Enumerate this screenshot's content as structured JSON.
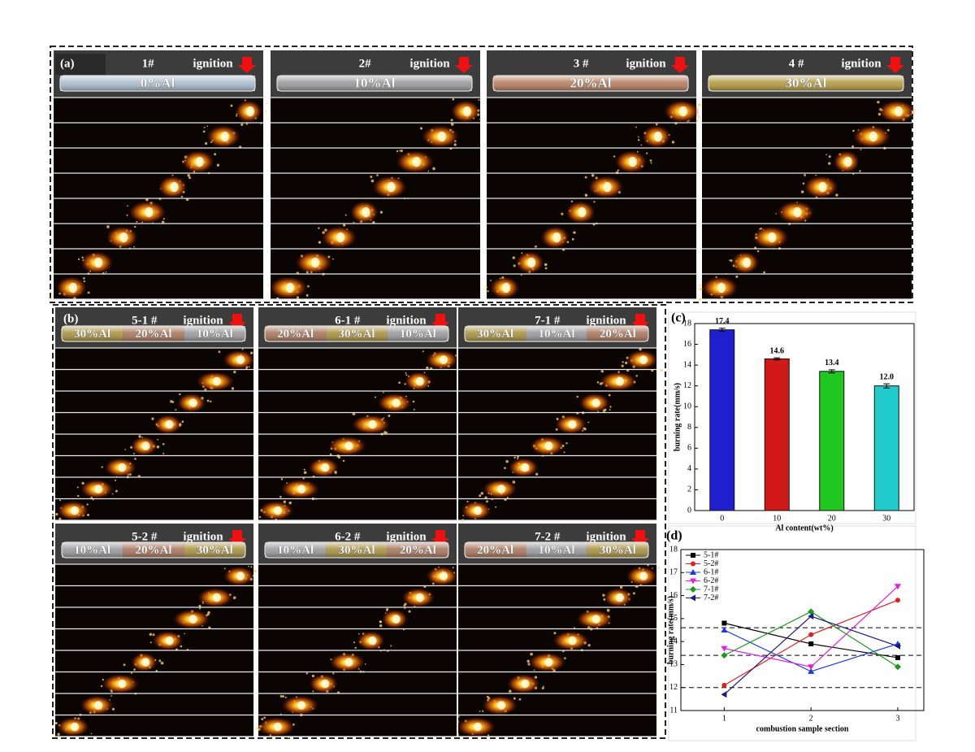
{
  "panel_a": {
    "label": "(a)",
    "samples": [
      {
        "name": "1#",
        "ignition": "ignition",
        "segments": [
          "0%Al"
        ],
        "colors": [
          "#a8bccb"
        ]
      },
      {
        "name": "2#",
        "ignition": "ignition",
        "segments": [
          "10%Al"
        ],
        "colors": [
          "#9a9a9c"
        ]
      },
      {
        "name": "3 #",
        "ignition": "ignition",
        "segments": [
          "20%Al"
        ],
        "colors": [
          "#b57d5e"
        ]
      },
      {
        "name": "4 #",
        "ignition": "ignition",
        "segments": [
          "30%Al"
        ],
        "colors": [
          "#b19a3f"
        ]
      }
    ]
  },
  "panel_b": {
    "label": "(b)",
    "samples": [
      {
        "name": "5-1 #",
        "ignition": "ignition",
        "segments": [
          "30%Al",
          "20%Al",
          "10%Al"
        ],
        "colors": [
          "#a8923f",
          "#a9775c",
          "#9a9a9c"
        ]
      },
      {
        "name": "6-1 #",
        "ignition": "ignition",
        "segments": [
          "20%Al",
          "30%Al",
          "10%Al"
        ],
        "colors": [
          "#a9775c",
          "#a8923f",
          "#9a9a9c"
        ]
      },
      {
        "name": "7-1 #",
        "ignition": "ignition",
        "segments": [
          "30%Al",
          "10%Al",
          "20%Al"
        ],
        "colors": [
          "#a8923f",
          "#9a9a9c",
          "#a9775c"
        ]
      },
      {
        "name": "5-2 #",
        "ignition": "ignition",
        "segments": [
          "10%Al",
          "20%Al",
          "30%Al"
        ],
        "colors": [
          "#9a9a9c",
          "#a9775c",
          "#a8923f"
        ]
      },
      {
        "name": "6-2 #",
        "ignition": "ignition",
        "segments": [
          "10%Al",
          "30%Al",
          "20%Al"
        ],
        "colors": [
          "#9a9a9c",
          "#a8923f",
          "#a9775c"
        ]
      },
      {
        "name": "7-2 #",
        "ignition": "ignition",
        "segments": [
          "20%Al",
          "10%Al",
          "30%Al"
        ],
        "colors": [
          "#a9775c",
          "#9a9a9c",
          "#a8923f"
        ]
      }
    ]
  },
  "chart_data": [
    {
      "type": "bar",
      "label": "(c)",
      "x_label": "Al content(wt%)",
      "y_label": "burning rate(mm/s)",
      "categories": [
        "0",
        "10",
        "20",
        "30"
      ],
      "values": [
        17.4,
        14.6,
        13.4,
        12.0
      ],
      "value_labels": [
        "17.4",
        "14.6",
        "13.4",
        "12.0"
      ],
      "errors": [
        0.15,
        0.1,
        0.15,
        0.2
      ],
      "colors": [
        "#1f1fd0",
        "#d01a1a",
        "#1fc81f",
        "#22cccc"
      ],
      "ylim": [
        0,
        18
      ],
      "yticks": [
        0,
        2,
        4,
        6,
        8,
        10,
        12,
        14,
        16,
        18
      ]
    },
    {
      "type": "line",
      "label": "(d)",
      "x_label": "combustion sample section",
      "y_label": "burning rate(mm/s)",
      "x": [
        1,
        2,
        3
      ],
      "xlim": [
        0.5,
        3.3
      ],
      "xticks": [
        1,
        2,
        3
      ],
      "ylim": [
        11,
        18
      ],
      "yticks": [
        11,
        12,
        13,
        14,
        15,
        16,
        17,
        18
      ],
      "reference_lines": [
        14.6,
        13.4,
        12.0
      ],
      "legend": "upper left",
      "series": [
        {
          "name": "5-1#",
          "color": "#000000",
          "marker": "square",
          "values": [
            14.8,
            13.9,
            13.3
          ]
        },
        {
          "name": "5-2#",
          "color": "#e02020",
          "marker": "circle",
          "values": [
            12.1,
            14.3,
            15.8
          ]
        },
        {
          "name": "6-1#",
          "color": "#1a3ae0",
          "marker": "triangle-up",
          "values": [
            14.5,
            12.7,
            13.9
          ]
        },
        {
          "name": "6-2#",
          "color": "#e020e0",
          "marker": "triangle-down",
          "values": [
            13.7,
            12.9,
            16.4
          ]
        },
        {
          "name": "7-1#",
          "color": "#1a9a1a",
          "marker": "diamond",
          "values": [
            13.4,
            15.3,
            12.9
          ]
        },
        {
          "name": "7-2#",
          "color": "#1a1a80",
          "marker": "triangle-left",
          "values": [
            11.7,
            15.1,
            13.8
          ]
        }
      ]
    }
  ]
}
